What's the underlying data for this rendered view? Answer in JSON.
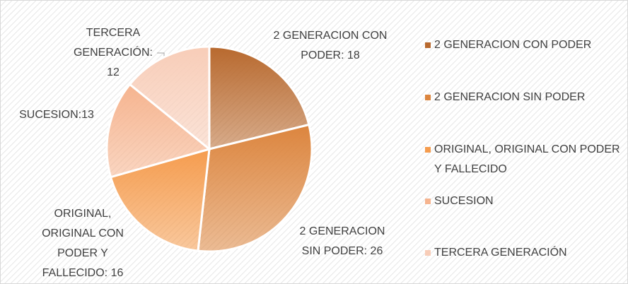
{
  "chart_data": {
    "type": "pie",
    "categories": [
      "2 GENERACION CON PODER",
      "2 GENERACION SIN PODER",
      "ORIGINAL, ORIGINAL CON PODER Y FALLECIDO",
      "SUCESION",
      "TERCERA GENERACIÓN"
    ],
    "values": [
      18,
      26,
      16,
      13,
      12
    ],
    "value_labels": [
      "2 GENERACION CON PODER: 18",
      "2 GENERACION SIN PODER: 26",
      "ORIGINAL, ORIGINAL CON PODER Y FALLECIDO: 16",
      "SUCESION:13",
      "TERCERA GENERACIÓN: 12"
    ],
    "colors": [
      "#b8692e",
      "#dc853e",
      "#f59c4e",
      "#f6b48f",
      "#f8cdb8"
    ],
    "legend": "right"
  }
}
